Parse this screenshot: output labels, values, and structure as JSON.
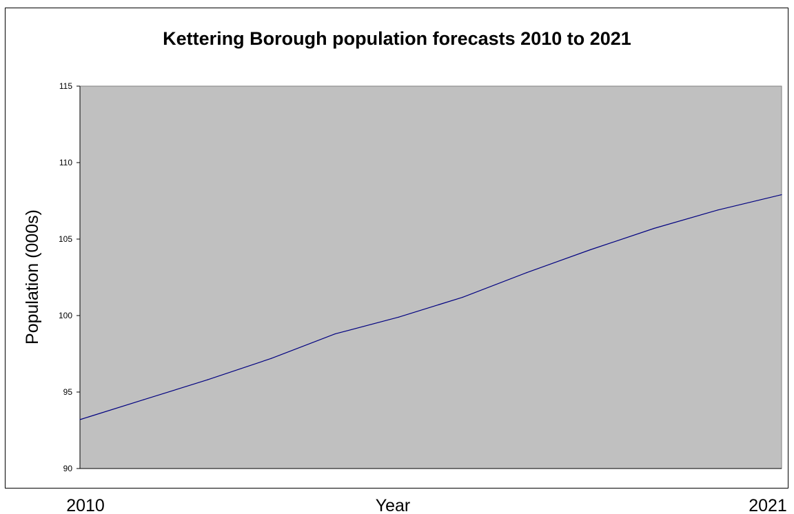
{
  "chart_data": {
    "type": "line",
    "title": "Kettering Borough population forecasts 2010 to 2021",
    "xlabel": "Year",
    "ylabel": "Population (000s)",
    "x": [
      2010,
      2011,
      2012,
      2013,
      2014,
      2015,
      2016,
      2017,
      2018,
      2019,
      2020,
      2021
    ],
    "x_tick_labels": [
      "2010",
      "2021"
    ],
    "y_ticks": [
      "90",
      "95",
      "100",
      "105",
      "110",
      "115"
    ],
    "ylim": [
      90,
      115
    ],
    "grid": false,
    "legend": "none",
    "series": [
      {
        "values": [
          93.2,
          94.5,
          95.8,
          97.2,
          98.8,
          99.9,
          101.2,
          102.8,
          104.3,
          105.7,
          106.9,
          107.9
        ]
      }
    ]
  },
  "colors": {
    "plot_background": "#c0c0c0",
    "line": "#000080",
    "axis": "#000000"
  }
}
